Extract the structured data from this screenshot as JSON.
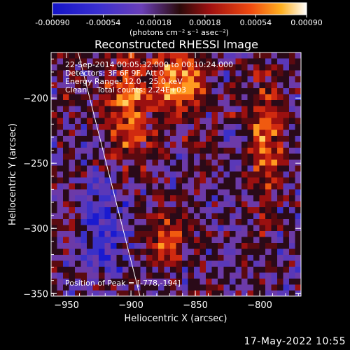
{
  "chart_data": {
    "type": "heatmap",
    "title": "Reconstructed RHESSI Image",
    "xlabel": "Heliocentric X (arcsec)",
    "ylabel": "Heliocentric Y (arcsec)",
    "xlim": [
      -962,
      -768
    ],
    "ylim": [
      -352,
      -165
    ],
    "x_ticks": [
      -950,
      -900,
      -850,
      -800
    ],
    "y_ticks": [
      -200,
      -250,
      -300,
      -350
    ],
    "colorbar": {
      "ticks": [
        "-0.00090",
        "-0.00054",
        "-0.00018",
        "0.00018",
        "0.00054",
        "0.00090"
      ],
      "range": [
        -0.0009,
        0.0009
      ],
      "unit_label": "(photons cm⁻² s⁻¹ asec⁻²)"
    },
    "annotations": [
      "22-Sep-2014 00:05:32.000 to 00:10:24.000",
      "Detectors: 3F 6F 9F, Att 0",
      "Energy Range: 12.0 - 25.0 keV",
      "Clean    Total counts: 2.24E+03"
    ],
    "peak_label": "Position of Peak = [-778,-194]",
    "limb_line": {
      "x1": -941,
      "y1": -165,
      "x2": -893,
      "y2": -352
    },
    "grid": false
  },
  "footer_timestamp": "17-May-2022 10:55"
}
